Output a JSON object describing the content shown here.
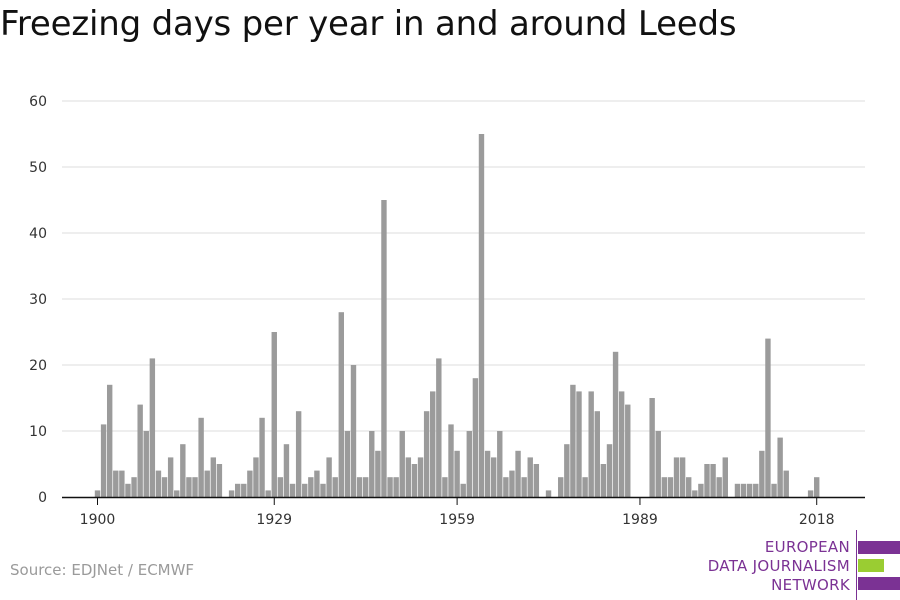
{
  "title": "Freezing days per year in and around Leeds",
  "source": "Source: EDJNet / ECMWF",
  "logo": {
    "line1": "EUROPEAN",
    "line2": "DATA JOURNALISM",
    "line3": "NETWORK",
    "colors": {
      "purple": "#7b3294",
      "green": "#9acd32"
    }
  },
  "colors": {
    "bar": "#9b9b9b",
    "grid": "#dddddd",
    "axis": "#111111"
  },
  "chart_data": {
    "type": "bar",
    "title": "Freezing days per year in and around Leeds",
    "xlabel": "",
    "ylabel": "",
    "ylim": [
      0,
      60
    ],
    "y_ticks": [
      0,
      10,
      20,
      30,
      40,
      50,
      60
    ],
    "x_tick_labels": [
      "1900",
      "1929",
      "1959",
      "1989",
      "2018"
    ],
    "x_range": [
      1900,
      2018
    ],
    "grid": true,
    "x": [
      1900,
      1901,
      1902,
      1903,
      1904,
      1905,
      1906,
      1907,
      1908,
      1909,
      1910,
      1911,
      1912,
      1913,
      1914,
      1915,
      1916,
      1917,
      1918,
      1919,
      1920,
      1921,
      1922,
      1923,
      1924,
      1925,
      1926,
      1927,
      1928,
      1929,
      1930,
      1931,
      1932,
      1933,
      1934,
      1935,
      1936,
      1937,
      1938,
      1939,
      1940,
      1941,
      1942,
      1943,
      1944,
      1945,
      1946,
      1947,
      1948,
      1949,
      1950,
      1951,
      1952,
      1953,
      1954,
      1955,
      1956,
      1957,
      1958,
      1959,
      1960,
      1961,
      1962,
      1963,
      1964,
      1965,
      1966,
      1967,
      1968,
      1969,
      1970,
      1971,
      1972,
      1973,
      1974,
      1975,
      1976,
      1977,
      1978,
      1979,
      1980,
      1981,
      1982,
      1983,
      1984,
      1985,
      1986,
      1987,
      1988,
      1989,
      1990,
      1991,
      1992,
      1993,
      1994,
      1995,
      1996,
      1997,
      1998,
      1999,
      2000,
      2001,
      2002,
      2003,
      2004,
      2005,
      2006,
      2007,
      2008,
      2009,
      2010,
      2011,
      2012,
      2013,
      2014,
      2015,
      2016,
      2017,
      2018
    ],
    "values": [
      1,
      11,
      17,
      4,
      4,
      2,
      3,
      14,
      10,
      21,
      4,
      3,
      6,
      1,
      8,
      3,
      3,
      12,
      4,
      6,
      5,
      0,
      1,
      2,
      2,
      4,
      6,
      12,
      1,
      25,
      3,
      8,
      2,
      13,
      2,
      3,
      4,
      2,
      6,
      3,
      28,
      10,
      20,
      3,
      3,
      10,
      7,
      45,
      3,
      3,
      10,
      6,
      5,
      6,
      13,
      16,
      21,
      3,
      11,
      7,
      2,
      10,
      18,
      55,
      7,
      6,
      10,
      3,
      4,
      7,
      3,
      6,
      5,
      0,
      1,
      0,
      3,
      8,
      17,
      16,
      3,
      16,
      13,
      5,
      8,
      22,
      16,
      14,
      0,
      0,
      0,
      15,
      10,
      3,
      3,
      6,
      6,
      3,
      1,
      2,
      5,
      5,
      3,
      6,
      0,
      2,
      2,
      2,
      2,
      7,
      24,
      2,
      9,
      4,
      0,
      0,
      0,
      1,
      3
    ]
  }
}
